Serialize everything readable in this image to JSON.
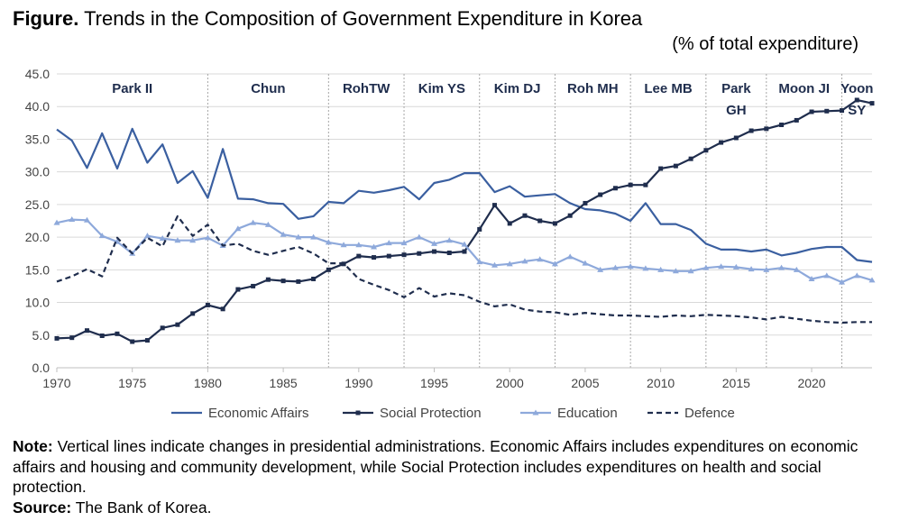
{
  "title_prefix": "Figure.",
  "title": "Trends in the Composition of Government Expenditure in Korea",
  "subtitle": "(% of total expenditure)",
  "notes": {
    "note_label": "Note:",
    "note_text": "Vertical lines indicate changes in presidential administrations. Economic Affairs includes expenditures on economic affairs and housing and community development, while Social Protection includes expenditures on health and social protection.",
    "source_label": "Source:",
    "source_text": "The Bank of Korea."
  },
  "chart_data": {
    "type": "line",
    "x": [
      1970,
      1971,
      1972,
      1973,
      1974,
      1975,
      1976,
      1977,
      1978,
      1979,
      1980,
      1981,
      1982,
      1983,
      1984,
      1985,
      1986,
      1987,
      1988,
      1989,
      1990,
      1991,
      1992,
      1993,
      1994,
      1995,
      1996,
      1997,
      1998,
      1999,
      2000,
      2001,
      2002,
      2003,
      2004,
      2005,
      2006,
      2007,
      2008,
      2009,
      2010,
      2011,
      2012,
      2013,
      2014,
      2015,
      2016,
      2017,
      2018,
      2019,
      2020,
      2021,
      2022,
      2023,
      2024
    ],
    "xlim": [
      1970,
      2024
    ],
    "ylim": [
      0,
      45
    ],
    "x_ticks": [
      1970,
      1975,
      1980,
      1985,
      1990,
      1995,
      2000,
      2005,
      2010,
      2015,
      2020
    ],
    "y_ticks": [
      "0.0",
      "5.0",
      "10.0",
      "15.0",
      "20.0",
      "25.0",
      "30.0",
      "35.0",
      "40.0",
      "45.0"
    ],
    "grid": "horizontal",
    "legend_position": "bottom",
    "series": [
      {
        "name": "Economic Affairs",
        "color": "#3a5fa0",
        "style": "solid",
        "marker": "none",
        "values": [
          36.5,
          34.8,
          30.6,
          35.9,
          30.5,
          36.6,
          31.4,
          34.2,
          28.3,
          30.1,
          26.0,
          33.5,
          25.9,
          25.8,
          25.2,
          25.1,
          22.8,
          23.2,
          25.4,
          25.2,
          27.1,
          26.8,
          27.2,
          27.7,
          25.8,
          28.3,
          28.8,
          29.8,
          29.8,
          26.9,
          27.8,
          26.2,
          26.4,
          26.6,
          25.2,
          24.3,
          24.1,
          23.6,
          22.5,
          25.2,
          22.0,
          22.0,
          21.1,
          19.0,
          18.1,
          18.1,
          17.8,
          18.1,
          17.2,
          17.6,
          18.2,
          18.5,
          18.5,
          16.5,
          16.2
        ]
      },
      {
        "name": "Social Protection",
        "color": "#1f2d4d",
        "style": "solid",
        "marker": "square",
        "values": [
          4.5,
          4.6,
          5.7,
          4.9,
          5.2,
          4.0,
          4.2,
          6.1,
          6.6,
          8.3,
          9.6,
          9.0,
          12.0,
          12.5,
          13.5,
          13.3,
          13.2,
          13.6,
          15.0,
          15.9,
          17.1,
          16.9,
          17.1,
          17.3,
          17.5,
          17.8,
          17.6,
          17.8,
          21.2,
          24.9,
          22.1,
          23.3,
          22.5,
          22.1,
          23.3,
          25.2,
          26.5,
          27.5,
          28.0,
          28.0,
          30.5,
          30.9,
          32.0,
          33.3,
          34.5,
          35.2,
          36.3,
          36.6,
          37.2,
          37.9,
          39.2,
          39.3,
          39.4,
          41.0,
          40.5
        ]
      },
      {
        "name": "Education",
        "color": "#8ea9db",
        "style": "solid",
        "marker": "triangle",
        "values": [
          22.2,
          22.7,
          22.6,
          20.2,
          19.3,
          17.5,
          20.2,
          19.8,
          19.5,
          19.5,
          19.9,
          18.7,
          21.3,
          22.2,
          21.9,
          20.4,
          20.0,
          20.0,
          19.2,
          18.8,
          18.8,
          18.5,
          19.1,
          19.1,
          20.0,
          19.0,
          19.5,
          18.9,
          16.2,
          15.7,
          15.9,
          16.3,
          16.6,
          15.9,
          17.0,
          16.0,
          15.0,
          15.3,
          15.5,
          15.2,
          15.0,
          14.8,
          14.8,
          15.3,
          15.5,
          15.4,
          15.1,
          15.0,
          15.3,
          15.0,
          13.6,
          14.1,
          13.1,
          14.1,
          13.4
        ]
      },
      {
        "name": "Defence",
        "color": "#1f2d4d",
        "style": "dashed",
        "marker": "none",
        "values": [
          13.2,
          14.0,
          15.1,
          14.0,
          19.9,
          17.5,
          19.9,
          18.6,
          23.2,
          20.2,
          21.9,
          18.7,
          19.0,
          17.9,
          17.3,
          17.9,
          18.5,
          17.5,
          16.0,
          16.0,
          13.6,
          12.7,
          11.9,
          10.8,
          12.2,
          10.9,
          11.4,
          11.1,
          10.1,
          9.4,
          9.7,
          8.9,
          8.6,
          8.5,
          8.1,
          8.4,
          8.2,
          8.0,
          8.0,
          7.9,
          7.8,
          8.0,
          7.9,
          8.1,
          8.0,
          7.9,
          7.7,
          7.4,
          7.8,
          7.5,
          7.2,
          7.0,
          6.9,
          7.0,
          7.0
        ]
      }
    ],
    "administration_boundaries": [
      1980,
      1988,
      1993,
      1998,
      2003,
      2008,
      2013,
      2017,
      2022
    ],
    "administrations": [
      {
        "lines": [
          "Park II"
        ],
        "start": 1970,
        "end": 1980
      },
      {
        "lines": [
          "Chun"
        ],
        "start": 1980,
        "end": 1988
      },
      {
        "lines": [
          "RohTW"
        ],
        "start": 1988,
        "end": 1993
      },
      {
        "lines": [
          "Kim YS"
        ],
        "start": 1993,
        "end": 1998
      },
      {
        "lines": [
          "Kim DJ"
        ],
        "start": 1998,
        "end": 2003
      },
      {
        "lines": [
          "Roh MH"
        ],
        "start": 2003,
        "end": 2008
      },
      {
        "lines": [
          "Lee MB"
        ],
        "start": 2008,
        "end": 2013
      },
      {
        "lines": [
          "Park",
          "GH"
        ],
        "start": 2013,
        "end": 2017
      },
      {
        "lines": [
          "Moon JI"
        ],
        "start": 2017,
        "end": 2022
      },
      {
        "lines": [
          "Yoon",
          "SY"
        ],
        "start": 2022,
        "end": 2024
      }
    ]
  }
}
